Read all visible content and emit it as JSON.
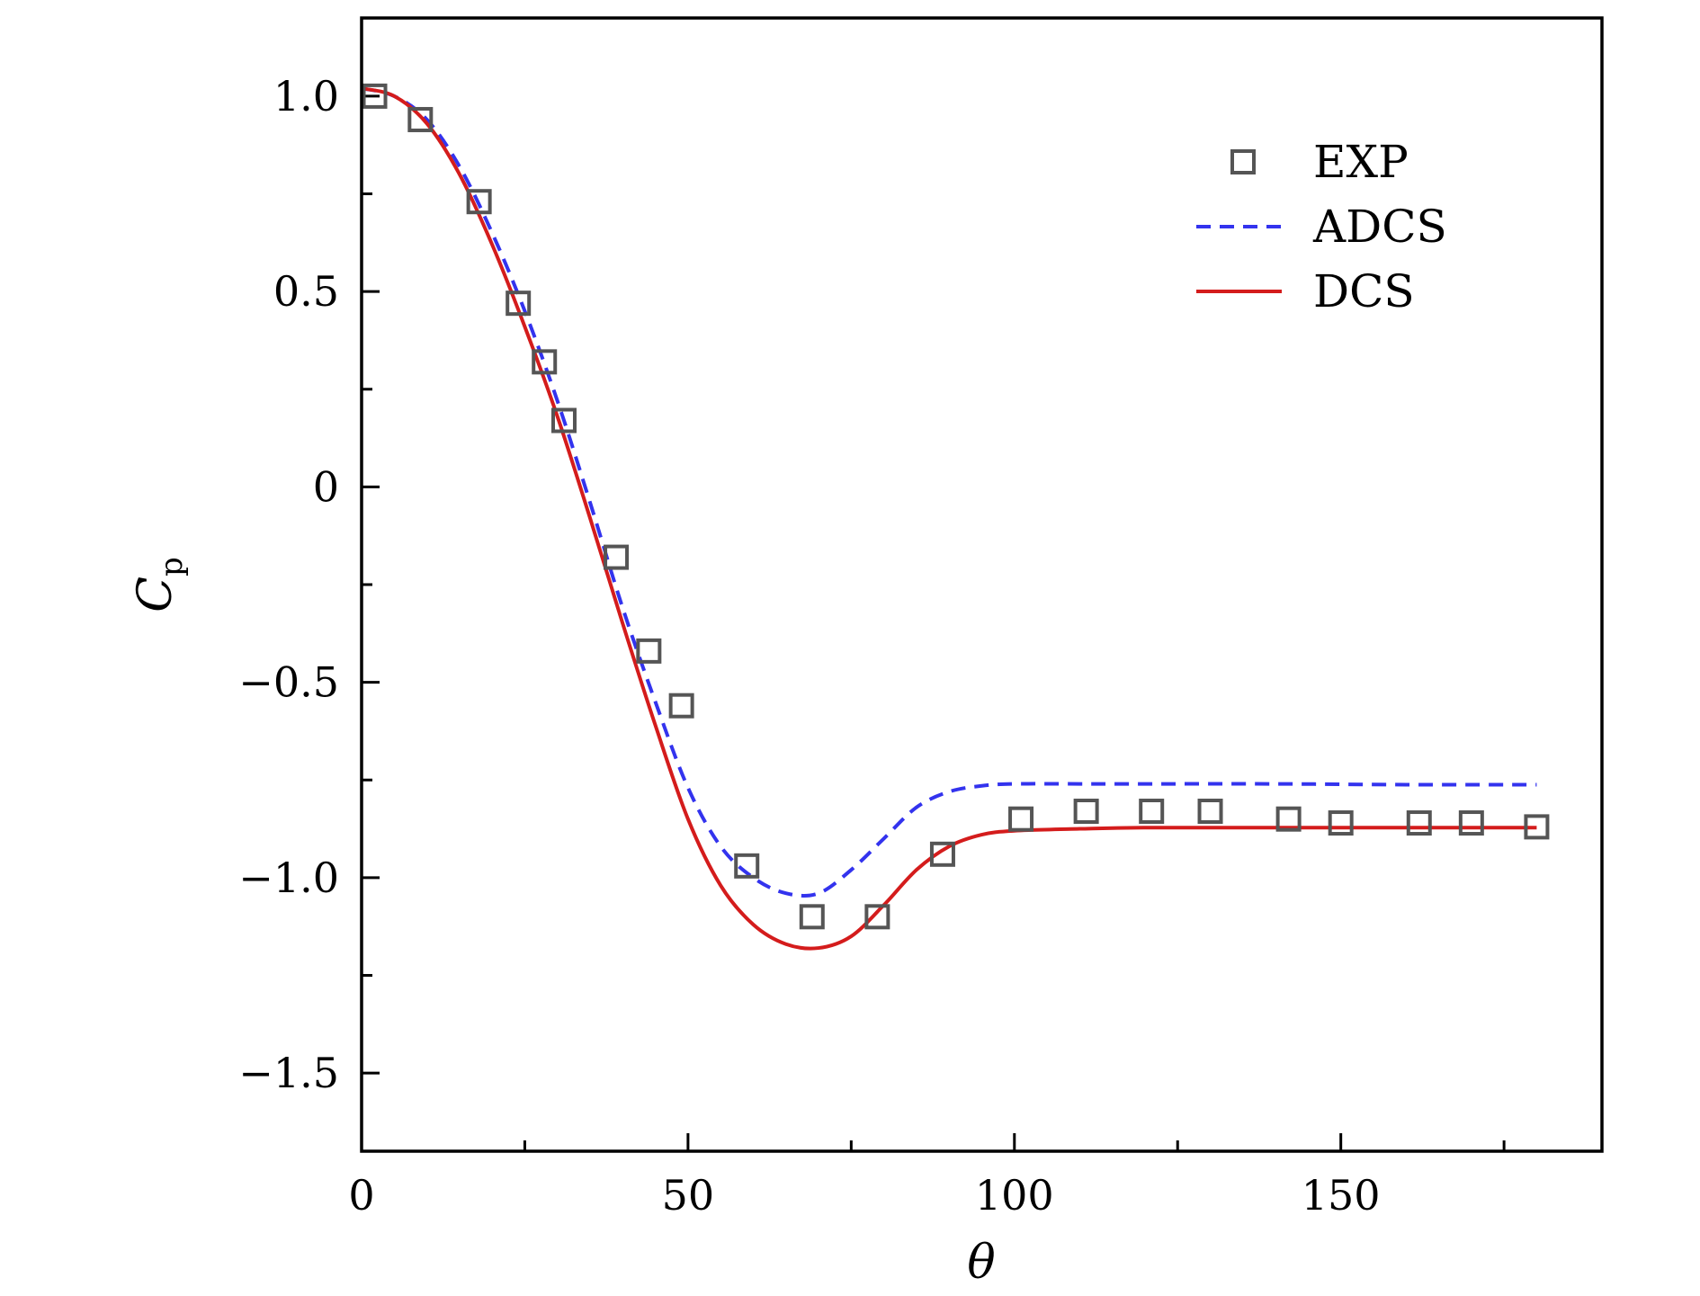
{
  "chart_data": {
    "type": "line",
    "title": "",
    "xlabel": "θ",
    "ylabel": {
      "main": "C",
      "sub": "p"
    },
    "xlim": [
      0,
      190
    ],
    "ylim": [
      -1.7,
      1.2
    ],
    "xticks": [
      0,
      50,
      100,
      150
    ],
    "xtick_labels": [
      "0",
      "50",
      "100",
      "150"
    ],
    "yticks": [
      1.0,
      0.5,
      0,
      -0.5,
      -1.0,
      -1.5
    ],
    "ytick_labels": [
      "1.0",
      "0.5",
      "0",
      "−0.5",
      "−1.0",
      "−1.5"
    ],
    "grid": false,
    "legend_position": "top-right",
    "series": [
      {
        "name": "EXP",
        "style": "markers",
        "marker": "square",
        "color": "#555555",
        "x": [
          2,
          9,
          18,
          24,
          28,
          31,
          39,
          44,
          49,
          59,
          69,
          79,
          89,
          101,
          111,
          121,
          130,
          142,
          150,
          162,
          170,
          180
        ],
        "y": [
          1.0,
          0.94,
          0.73,
          0.47,
          0.32,
          0.17,
          -0.18,
          -0.42,
          -0.56,
          -0.97,
          -1.1,
          -1.1,
          -0.94,
          -0.85,
          -0.83,
          -0.83,
          -0.83,
          -0.85,
          -0.86,
          -0.86,
          -0.86,
          -0.87
        ]
      },
      {
        "name": "ADCS",
        "style": "dashed",
        "color": "#3333ee",
        "x": [
          0,
          5,
          10,
          15,
          20,
          25,
          30,
          35,
          40,
          45,
          50,
          55,
          60,
          65,
          70,
          75,
          80,
          85,
          90,
          95,
          100,
          110,
          120,
          140,
          160,
          180
        ],
        "y": [
          1.02,
          1.0,
          0.94,
          0.82,
          0.65,
          0.45,
          0.22,
          -0.04,
          -0.31,
          -0.55,
          -0.77,
          -0.92,
          -1.0,
          -1.04,
          -1.04,
          -0.98,
          -0.9,
          -0.82,
          -0.78,
          -0.765,
          -0.76,
          -0.76,
          -0.76,
          -0.76,
          -0.762,
          -0.762
        ]
      },
      {
        "name": "DCS",
        "style": "solid",
        "color": "#d41c1c",
        "x": [
          0,
          5,
          10,
          15,
          20,
          25,
          30,
          35,
          40,
          45,
          50,
          55,
          60,
          65,
          70,
          75,
          80,
          85,
          90,
          95,
          100,
          110,
          120,
          140,
          160,
          180
        ],
        "y": [
          1.02,
          1.0,
          0.93,
          0.8,
          0.62,
          0.41,
          0.18,
          -0.08,
          -0.35,
          -0.61,
          -0.85,
          -1.02,
          -1.12,
          -1.17,
          -1.18,
          -1.15,
          -1.07,
          -0.98,
          -0.92,
          -0.89,
          -0.88,
          -0.875,
          -0.872,
          -0.872,
          -0.872,
          -0.872
        ]
      }
    ]
  }
}
